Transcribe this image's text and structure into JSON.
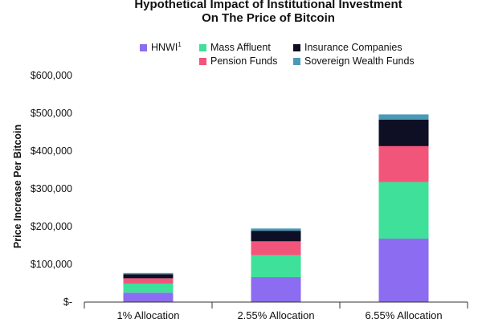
{
  "chart_data": {
    "type": "bar",
    "stacked": true,
    "title_lines": [
      "Hypothetical Impact of Institutional Investment",
      "On The Price of Bitcoin"
    ],
    "ylabel": "Price Increase Per Bitcoin",
    "xlabel": "",
    "categories": [
      "1% Allocation",
      "2.55% Allocation",
      "6.55% Allocation"
    ],
    "ylim": [
      0,
      600000
    ],
    "yticks": [
      0,
      100000,
      200000,
      300000,
      400000,
      500000,
      600000
    ],
    "ytick_labels": [
      "$-",
      "$100,000",
      "$200,000",
      "$300,000",
      "$400,000",
      "$500,000",
      "$600,000"
    ],
    "grid": false,
    "legend_position": "top",
    "series": [
      {
        "name": "HNWI",
        "superscript": "1",
        "color": "#8C6CF0",
        "values": [
          25000,
          66000,
          168000
        ]
      },
      {
        "name": "Mass Affluent",
        "color": "#3FE09A",
        "values": [
          24000,
          58000,
          150000
        ]
      },
      {
        "name": "Pension Funds",
        "color": "#F2557A",
        "values": [
          14000,
          37000,
          95000
        ]
      },
      {
        "name": "Insurance Companies",
        "color": "#0E0F24",
        "values": [
          11000,
          28000,
          70000
        ]
      },
      {
        "name": "Sovereign Wealth Funds",
        "color": "#4B9AB5",
        "values": [
          3000,
          6000,
          14000
        ]
      }
    ]
  }
}
